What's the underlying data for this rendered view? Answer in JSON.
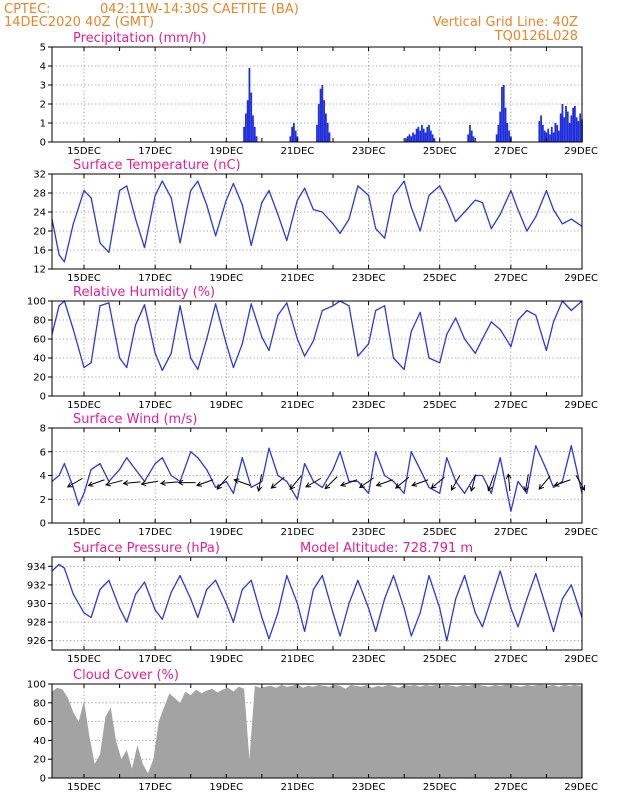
{
  "header": {
    "source": "CPTEC:",
    "location": "042:11W-14:30S   CAETITE (BA)",
    "run_time": "14DEC2020 40Z (GMT)",
    "grid_note": "Vertical Grid Line: 40Z",
    "model_code": "TQ0126L028"
  },
  "colors": {
    "line": "#2b3ad6",
    "bar": "#1f2fdc",
    "cloud": "#a3a3a3",
    "title": "#e0209a",
    "header": "#e8862a"
  },
  "chart_data": [
    {
      "id": "precip",
      "type": "bar",
      "title": "Precipitation (mm/h)",
      "ylim": [
        0,
        5
      ],
      "yticks": [
        0,
        1,
        2,
        3,
        4,
        5
      ],
      "xlim": [
        14.1,
        29.0
      ],
      "xticks": [
        "15DEC",
        "17DEC",
        "19DEC",
        "21DEC",
        "23DEC",
        "25DEC",
        "27DEC",
        "29DEC"
      ],
      "x": [
        19.5,
        19.55,
        19.6,
        19.65,
        19.7,
        19.75,
        19.8,
        19.85,
        20.8,
        20.85,
        20.9,
        20.95,
        21.0,
        21.55,
        21.6,
        21.65,
        21.7,
        21.75,
        21.8,
        21.85,
        21.9,
        24.05,
        24.1,
        24.15,
        24.2,
        24.25,
        24.3,
        24.35,
        24.4,
        24.45,
        24.5,
        24.55,
        24.6,
        24.65,
        24.7,
        24.75,
        24.8,
        24.85,
        25.8,
        25.85,
        25.9,
        25.95,
        26.6,
        26.65,
        26.7,
        26.75,
        26.8,
        26.85,
        26.9,
        26.95,
        27.0,
        27.8,
        27.85,
        27.9,
        27.95,
        28.0,
        28.05,
        28.1,
        28.15,
        28.2,
        28.25,
        28.3,
        28.35,
        28.4,
        28.45,
        28.5,
        28.55,
        28.6,
        28.65,
        28.7,
        28.75,
        28.8,
        28.85,
        28.9,
        28.95,
        29.0
      ],
      "values": [
        0.8,
        1.5,
        2.2,
        3.9,
        2.6,
        1.4,
        0.8,
        0.3,
        0.3,
        0.8,
        1.0,
        0.6,
        0.3,
        0.9,
        2.0,
        2.8,
        3.0,
        2.2,
        1.5,
        1.0,
        0.5,
        0.2,
        0.3,
        0.4,
        0.3,
        0.5,
        0.4,
        0.7,
        0.8,
        0.6,
        0.9,
        0.7,
        0.5,
        0.8,
        0.9,
        0.6,
        0.4,
        0.2,
        0.4,
        0.9,
        0.6,
        0.3,
        0.4,
        0.9,
        1.6,
        2.9,
        3.0,
        1.8,
        1.0,
        0.6,
        0.3,
        1.1,
        1.4,
        0.9,
        0.6,
        0.5,
        0.7,
        0.4,
        0.8,
        0.5,
        1.0,
        0.9,
        0.6,
        1.5,
        2.0,
        1.3,
        1.9,
        1.6,
        1.0,
        1.4,
        1.8,
        1.9,
        1.3,
        1.1,
        1.5,
        1.2
      ]
    },
    {
      "id": "temp",
      "type": "line",
      "title": "Surface Temperature (nC)",
      "ylim": [
        12,
        32
      ],
      "yticks": [
        12,
        16,
        20,
        24,
        28,
        32
      ],
      "xlim": [
        14.1,
        29.0
      ],
      "xticks": [
        "15DEC",
        "17DEC",
        "19DEC",
        "21DEC",
        "23DEC",
        "25DEC",
        "27DEC",
        "29DEC"
      ],
      "x": [
        14.1,
        14.3,
        14.45,
        14.7,
        15.0,
        15.2,
        15.45,
        15.7,
        16.0,
        16.2,
        16.45,
        16.7,
        17.0,
        17.2,
        17.45,
        17.7,
        18.0,
        18.2,
        18.45,
        18.7,
        19.0,
        19.2,
        19.45,
        19.7,
        20.0,
        20.2,
        20.45,
        20.7,
        21.0,
        21.2,
        21.45,
        21.7,
        22.0,
        22.2,
        22.45,
        22.7,
        23.0,
        23.2,
        23.45,
        23.7,
        24.0,
        24.2,
        24.45,
        24.7,
        25.0,
        25.2,
        25.45,
        25.7,
        26.0,
        26.2,
        26.45,
        26.7,
        27.0,
        27.2,
        27.45,
        27.7,
        28.0,
        28.2,
        28.45,
        28.7,
        29.0
      ],
      "values": [
        22.5,
        15.0,
        13.5,
        21.5,
        28.5,
        27.0,
        17.5,
        15.5,
        28.5,
        29.5,
        22.5,
        16.5,
        27.5,
        30.5,
        27.0,
        17.5,
        28.5,
        30.5,
        25.5,
        19.0,
        26.5,
        30.0,
        25.5,
        17.0,
        26.0,
        28.5,
        23.5,
        18.0,
        26.5,
        29.0,
        24.5,
        24.0,
        21.5,
        19.5,
        22.5,
        29.5,
        27.5,
        20.5,
        18.5,
        27.5,
        30.5,
        25.0,
        20.0,
        27.5,
        29.5,
        26.5,
        22.0,
        24.0,
        26.5,
        26.0,
        20.5,
        23.5,
        28.5,
        24.5,
        20.0,
        23.0,
        28.5,
        24.5,
        21.5,
        22.5,
        21.0
      ]
    },
    {
      "id": "rh",
      "type": "line",
      "title": "Relative Humidity (%)",
      "ylim": [
        0,
        100
      ],
      "yticks": [
        0,
        20,
        40,
        60,
        80,
        100
      ],
      "xlim": [
        14.1,
        29.0
      ],
      "xticks": [
        "15DEC",
        "17DEC",
        "19DEC",
        "21DEC",
        "23DEC",
        "25DEC",
        "27DEC",
        "29DEC"
      ],
      "x": [
        14.1,
        14.3,
        14.45,
        14.7,
        15.0,
        15.2,
        15.45,
        15.7,
        16.0,
        16.2,
        16.45,
        16.7,
        17.0,
        17.2,
        17.45,
        17.7,
        18.0,
        18.2,
        18.45,
        18.7,
        19.0,
        19.2,
        19.45,
        19.7,
        20.0,
        20.2,
        20.45,
        20.7,
        21.0,
        21.2,
        21.45,
        21.7,
        22.0,
        22.2,
        22.45,
        22.7,
        23.0,
        23.2,
        23.45,
        23.7,
        24.0,
        24.2,
        24.45,
        24.7,
        25.0,
        25.2,
        25.45,
        25.7,
        26.0,
        26.2,
        26.45,
        26.7,
        27.0,
        27.2,
        27.45,
        27.7,
        28.0,
        28.2,
        28.45,
        28.7,
        29.0
      ],
      "values": [
        65,
        95,
        100,
        70,
        30,
        35,
        95,
        98,
        40,
        30,
        75,
        96,
        45,
        27,
        45,
        95,
        40,
        28,
        60,
        97,
        55,
        30,
        55,
        97,
        62,
        48,
        85,
        98,
        60,
        42,
        58,
        90,
        95,
        100,
        95,
        42,
        55,
        90,
        95,
        40,
        28,
        68,
        88,
        40,
        35,
        65,
        82,
        60,
        45,
        60,
        78,
        70,
        52,
        80,
        90,
        85,
        48,
        78,
        100,
        90,
        100
      ]
    },
    {
      "id": "wind",
      "type": "line",
      "title": "Surface Wind (m/s)",
      "ylim": [
        0,
        8
      ],
      "yticks": [
        0,
        2,
        4,
        6,
        8
      ],
      "xlim": [
        14.1,
        29.0
      ],
      "xticks": [
        "15DEC",
        "17DEC",
        "19DEC",
        "21DEC",
        "23DEC",
        "25DEC",
        "27DEC",
        "29DEC"
      ],
      "x": [
        14.1,
        14.3,
        14.45,
        14.7,
        14.85,
        15.0,
        15.2,
        15.45,
        15.7,
        16.0,
        16.2,
        16.45,
        16.7,
        17.0,
        17.2,
        17.45,
        17.7,
        18.0,
        18.2,
        18.45,
        18.7,
        19.0,
        19.2,
        19.45,
        19.7,
        20.0,
        20.2,
        20.45,
        20.7,
        21.0,
        21.2,
        21.45,
        21.7,
        22.0,
        22.2,
        22.45,
        22.7,
        23.0,
        23.2,
        23.45,
        23.7,
        24.0,
        24.2,
        24.45,
        24.7,
        25.0,
        25.2,
        25.45,
        25.7,
        26.0,
        26.2,
        26.45,
        26.7,
        27.0,
        27.2,
        27.45,
        27.7,
        28.0,
        28.2,
        28.45,
        28.7,
        29.0
      ],
      "values": [
        3.5,
        4.0,
        5.0,
        3.0,
        1.5,
        2.5,
        4.5,
        5.0,
        3.5,
        4.5,
        5.5,
        4.5,
        3.5,
        5.0,
        5.5,
        4.0,
        3.5,
        6.0,
        5.5,
        4.5,
        3.0,
        3.5,
        2.5,
        5.5,
        3.0,
        3.5,
        6.3,
        4.0,
        3.5,
        2.0,
        5.0,
        3.5,
        3.0,
        4.5,
        6.0,
        3.5,
        3.5,
        2.5,
        6.0,
        4.0,
        3.5,
        2.5,
        6.0,
        4.5,
        3.0,
        2.5,
        5.5,
        3.5,
        2.5,
        4.0,
        4.0,
        2.5,
        5.5,
        1.0,
        3.5,
        2.5,
        6.5,
        4.5,
        3.0,
        3.5,
        6.5,
        2.5
      ],
      "arrow_x": [
        14.75,
        15.35,
        15.85,
        16.35,
        16.85,
        17.4,
        17.9,
        18.4,
        18.9,
        19.45,
        19.95,
        20.45,
        20.95,
        21.45,
        21.95,
        22.45,
        22.95,
        23.45,
        23.95,
        24.45,
        24.95,
        25.45,
        25.95,
        26.45,
        26.95,
        27.45,
        27.95,
        28.45,
        28.95
      ],
      "arrow_dir_deg": [
        210,
        200,
        195,
        185,
        190,
        185,
        180,
        200,
        230,
        160,
        260,
        220,
        230,
        210,
        225,
        200,
        215,
        200,
        220,
        200,
        220,
        240,
        255,
        250,
        95,
        260,
        230,
        200,
        300
      ]
    },
    {
      "id": "pressure",
      "type": "line",
      "title": "Surface Pressure (hPa)",
      "annotation": "Model Altitude: 728.791 m",
      "ylim": [
        925,
        935
      ],
      "yticks": [
        926,
        928,
        930,
        932,
        934
      ],
      "xlim": [
        14.1,
        29.0
      ],
      "xticks": [
        "15DEC",
        "17DEC",
        "19DEC",
        "21DEC",
        "23DEC",
        "25DEC",
        "27DEC",
        "29DEC"
      ],
      "x": [
        14.1,
        14.3,
        14.45,
        14.7,
        15.0,
        15.2,
        15.45,
        15.7,
        16.0,
        16.2,
        16.45,
        16.7,
        17.0,
        17.2,
        17.45,
        17.7,
        18.0,
        18.2,
        18.45,
        18.7,
        19.0,
        19.2,
        19.45,
        19.7,
        20.0,
        20.2,
        20.45,
        20.7,
        21.0,
        21.2,
        21.45,
        21.7,
        22.0,
        22.2,
        22.45,
        22.7,
        23.0,
        23.2,
        23.45,
        23.7,
        24.0,
        24.2,
        24.45,
        24.7,
        25.0,
        25.2,
        25.45,
        25.7,
        26.0,
        26.2,
        26.45,
        26.7,
        27.0,
        27.2,
        27.45,
        27.7,
        28.0,
        28.2,
        28.45,
        28.7,
        29.0
      ],
      "values": [
        933.5,
        934.2,
        933.8,
        931.0,
        929.0,
        928.5,
        931.5,
        932.5,
        929.5,
        928.0,
        931.0,
        932.3,
        929.3,
        928.3,
        931.2,
        933.0,
        930.5,
        928.5,
        931.5,
        932.5,
        930.0,
        928.0,
        931.5,
        932.5,
        928.5,
        926.2,
        929.0,
        933.0,
        930.0,
        927.0,
        931.5,
        933.0,
        929.0,
        926.5,
        930.0,
        932.5,
        929.5,
        927.0,
        930.5,
        933.0,
        929.5,
        926.5,
        929.0,
        933.0,
        929.5,
        926.0,
        930.5,
        933.0,
        929.0,
        927.5,
        930.5,
        933.5,
        929.5,
        927.5,
        930.5,
        933.2,
        929.5,
        927.0,
        930.5,
        932.0,
        928.5
      ]
    },
    {
      "id": "cloud",
      "type": "area",
      "title": "Cloud Cover (%)",
      "ylim": [
        0,
        100
      ],
      "yticks": [
        0,
        20,
        40,
        60,
        80,
        100
      ],
      "xlim": [
        14.1,
        29.0
      ],
      "xticks": [
        "15DEC",
        "17DEC",
        "19DEC",
        "21DEC",
        "23DEC",
        "25DEC",
        "27DEC",
        "29DEC"
      ],
      "x": [
        14.1,
        14.25,
        14.4,
        14.55,
        14.7,
        14.85,
        15.0,
        15.15,
        15.3,
        15.45,
        15.6,
        15.75,
        15.9,
        16.05,
        16.2,
        16.35,
        16.5,
        16.65,
        16.8,
        16.95,
        17.1,
        17.25,
        17.4,
        17.55,
        17.7,
        17.85,
        18.0,
        18.15,
        18.3,
        18.45,
        18.6,
        18.75,
        18.9,
        19.05,
        19.2,
        19.35,
        19.5,
        19.65,
        19.8,
        19.95,
        20.1,
        20.25,
        20.4,
        20.55,
        20.7,
        20.85,
        21.0,
        21.15,
        21.3,
        21.45,
        21.6,
        21.75,
        21.9,
        22.05,
        22.2,
        22.35,
        22.5,
        22.65,
        22.8,
        22.95,
        23.1,
        23.25,
        23.4,
        23.55,
        23.7,
        23.85,
        24.0,
        24.15,
        24.3,
        24.45,
        24.6,
        24.75,
        24.9,
        25.05,
        25.2,
        25.35,
        25.5,
        25.65,
        25.8,
        25.95,
        26.1,
        26.25,
        26.4,
        26.55,
        26.7,
        26.85,
        27.0,
        27.15,
        27.3,
        27.45,
        27.6,
        27.75,
        27.9,
        28.05,
        28.2,
        28.35,
        28.5,
        28.65,
        28.8,
        28.95,
        29.0
      ],
      "values": [
        92,
        96,
        94,
        85,
        70,
        60,
        82,
        45,
        15,
        25,
        65,
        75,
        40,
        20,
        30,
        10,
        35,
        15,
        5,
        20,
        60,
        75,
        90,
        85,
        80,
        92,
        88,
        94,
        90,
        93,
        95,
        91,
        94,
        96,
        92,
        97,
        95,
        20,
        98,
        96,
        97,
        98,
        96,
        99,
        97,
        98,
        100,
        96,
        98,
        97,
        99,
        98,
        97,
        99,
        98,
        95,
        99,
        98,
        97,
        99,
        96,
        98,
        97,
        99,
        98,
        96,
        99,
        98,
        99,
        97,
        99,
        98,
        99,
        98,
        99,
        98,
        97,
        99,
        98,
        99,
        99,
        98,
        97,
        99,
        98,
        99,
        99,
        98,
        97,
        99,
        98,
        99,
        99,
        98,
        99,
        97,
        99,
        98,
        99,
        98,
        99
      ]
    }
  ]
}
